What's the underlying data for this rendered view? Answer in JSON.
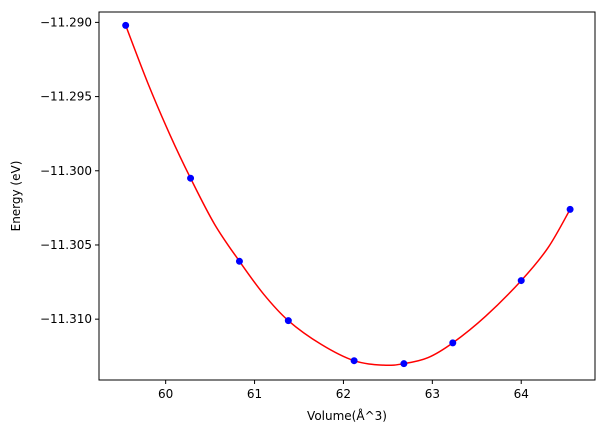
{
  "chart_data": {
    "type": "scatter",
    "title": "",
    "xlabel": "Volume(Å^3)",
    "ylabel": "Energy (eV)",
    "xlim": [
      59.25,
      64.83
    ],
    "ylim": [
      -11.3141,
      -11.2893
    ],
    "x_ticks": [
      60,
      61,
      62,
      63,
      64
    ],
    "x_tick_labels": [
      "60",
      "61",
      "62",
      "63",
      "64"
    ],
    "y_ticks": [
      -11.29,
      -11.295,
      -11.3,
      -11.305,
      -11.31
    ],
    "y_tick_labels": [
      "−11.290",
      "−11.295",
      "−11.300",
      "−11.305",
      "−11.310"
    ],
    "grid": false,
    "legend": "none",
    "series": [
      {
        "kind": "scatter",
        "color": "#0000ff",
        "points": [
          [
            59.55,
            -11.2902
          ],
          [
            60.28,
            -11.3005
          ],
          [
            60.83,
            -11.3061
          ],
          [
            61.38,
            -11.3101
          ],
          [
            62.12,
            -11.3128
          ],
          [
            62.68,
            -11.313
          ],
          [
            63.23,
            -11.3116
          ],
          [
            64.0,
            -11.3074
          ],
          [
            64.55,
            -11.3026
          ]
        ]
      },
      {
        "kind": "line",
        "color": "#ff0000",
        "curve_points": [
          [
            59.55,
            -11.2902
          ],
          [
            59.8,
            -11.2941
          ],
          [
            60.05,
            -11.2976
          ],
          [
            60.28,
            -11.3005
          ],
          [
            60.55,
            -11.3036
          ],
          [
            60.83,
            -11.3061
          ],
          [
            61.1,
            -11.3083
          ],
          [
            61.38,
            -11.3101
          ],
          [
            61.75,
            -11.3117
          ],
          [
            62.12,
            -11.3128
          ],
          [
            62.45,
            -11.3131
          ],
          [
            62.68,
            -11.313
          ],
          [
            62.95,
            -11.3126
          ],
          [
            63.23,
            -11.3116
          ],
          [
            63.6,
            -11.3098
          ],
          [
            64.0,
            -11.3074
          ],
          [
            64.3,
            -11.3052
          ],
          [
            64.55,
            -11.3026
          ]
        ]
      }
    ]
  }
}
